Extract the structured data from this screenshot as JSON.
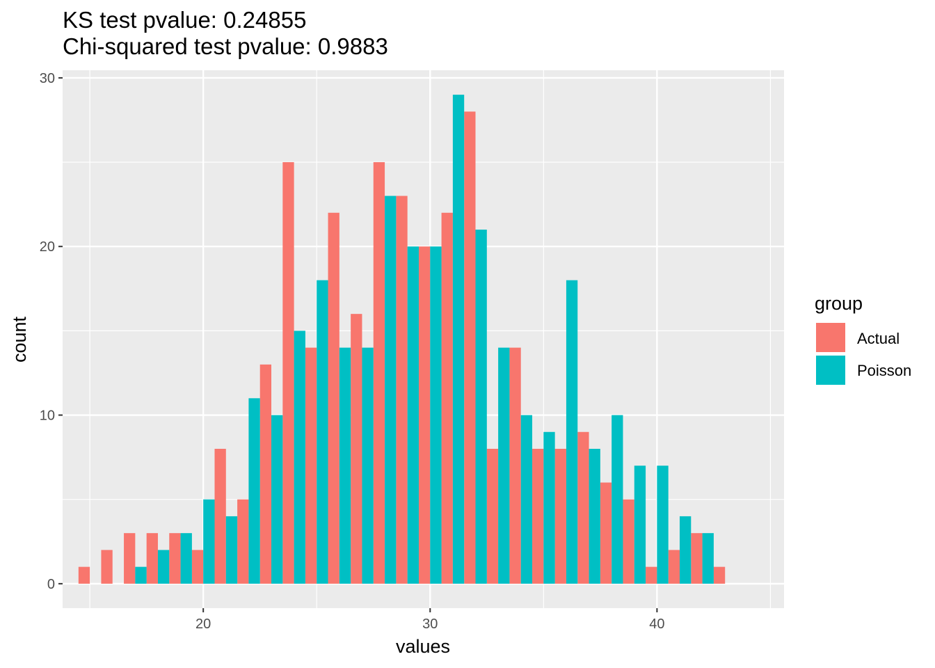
{
  "chart_data": {
    "type": "bar",
    "title_lines": [
      "KS test pvalue: 0.24855",
      "Chi-squared test pvalue: 0.9883"
    ],
    "xlabel": "values",
    "ylabel": "count",
    "xlim": [
      13.8,
      45.6
    ],
    "ylim": [
      -1.45,
      30.45
    ],
    "x_ticks": [
      20,
      30,
      40
    ],
    "x_tick_labels": [
      "20",
      "30",
      "40"
    ],
    "y_ticks": [
      0,
      10,
      20,
      30
    ],
    "y_tick_labels": [
      "0",
      "10",
      "20",
      "30"
    ],
    "x_minor_gridlines": [
      15,
      25,
      35,
      45
    ],
    "y_minor_gridlines": [
      5,
      15,
      25
    ],
    "grid": true,
    "panel_background": "#ebebeb",
    "bar_position": "dodge",
    "bin_width": 1,
    "legend": {
      "title": "group",
      "position": "right",
      "entries": [
        "Actual",
        "Poisson"
      ]
    },
    "series": [
      {
        "name": "Actual",
        "color": "#f8766d",
        "x": [
          15,
          16,
          17,
          18,
          19,
          20,
          21,
          22,
          23,
          24,
          25,
          26,
          27,
          28,
          29,
          30,
          31,
          32,
          33,
          34,
          35,
          36,
          37,
          38,
          39,
          40,
          41,
          42,
          43
        ],
        "values": [
          1,
          2,
          3,
          3,
          3,
          2,
          8,
          5,
          13,
          25,
          14,
          22,
          16,
          25,
          23,
          20,
          22,
          28,
          8,
          14,
          8,
          8,
          9,
          6,
          5,
          1,
          2,
          3,
          1
        ]
      },
      {
        "name": "Poisson",
        "color": "#00bfc4",
        "x": [
          17,
          18,
          19,
          20,
          21,
          22,
          23,
          24,
          25,
          26,
          27,
          28,
          29,
          30,
          31,
          32,
          33,
          34,
          35,
          36,
          37,
          38,
          39,
          40,
          41,
          42
        ],
        "values": [
          1,
          2,
          3,
          5,
          4,
          11,
          10,
          15,
          18,
          14,
          14,
          23,
          20,
          20,
          29,
          21,
          14,
          10,
          9,
          18,
          8,
          10,
          7,
          7,
          4,
          3
        ]
      }
    ]
  }
}
